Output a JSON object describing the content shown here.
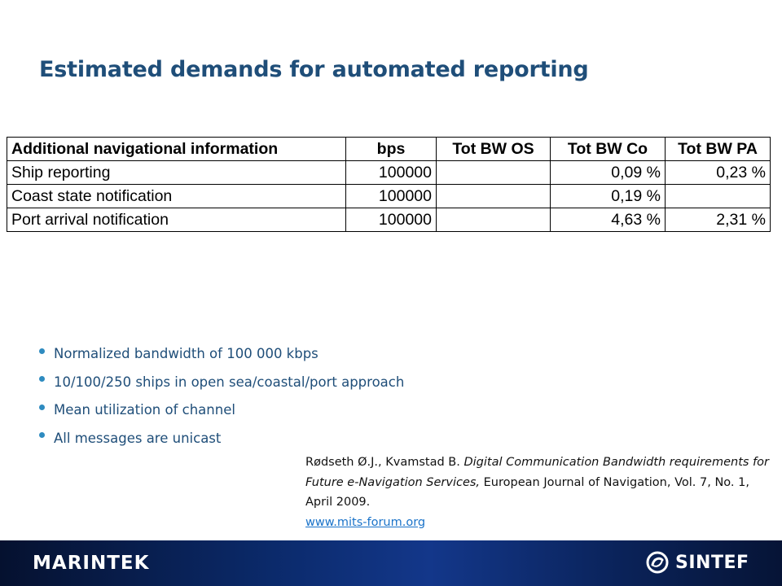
{
  "slide": {
    "title": "Estimated demands for automated reporting"
  },
  "table": {
    "headers": [
      "Additional navigational information",
      "bps",
      "Tot BW OS",
      "Tot BW Co",
      "Tot BW PA"
    ],
    "rows": [
      [
        "Ship reporting",
        "100000",
        "",
        "0,09 %",
        "0,23 %"
      ],
      [
        "Coast state notification",
        "100000",
        "",
        "0,19 %",
        ""
      ],
      [
        "Port arrival notification",
        "100000",
        "",
        "4,63 %",
        "2,31 %"
      ]
    ]
  },
  "bullets": [
    "Normalized bandwidth of 100 000 kbps",
    "10/100/250 ships in open sea/coastal/port approach",
    "Mean utilization of channel",
    "All messages are unicast"
  ],
  "reference": {
    "authors": "Rødseth Ø.J., Kvamstad B. ",
    "title": "Digital Communication Bandwidth requirements for Future e-Navigation Services,",
    "journal": " European Journal of Navigation, Vol. 7, No. 1, April 2009.",
    "link": "www.mits-forum.org"
  },
  "footer": {
    "left_logo": "MARINTEK",
    "right_logo": "SINTEF",
    "colors": {
      "bar": "#0b2a6b",
      "accent": "#2e8bc0"
    }
  }
}
